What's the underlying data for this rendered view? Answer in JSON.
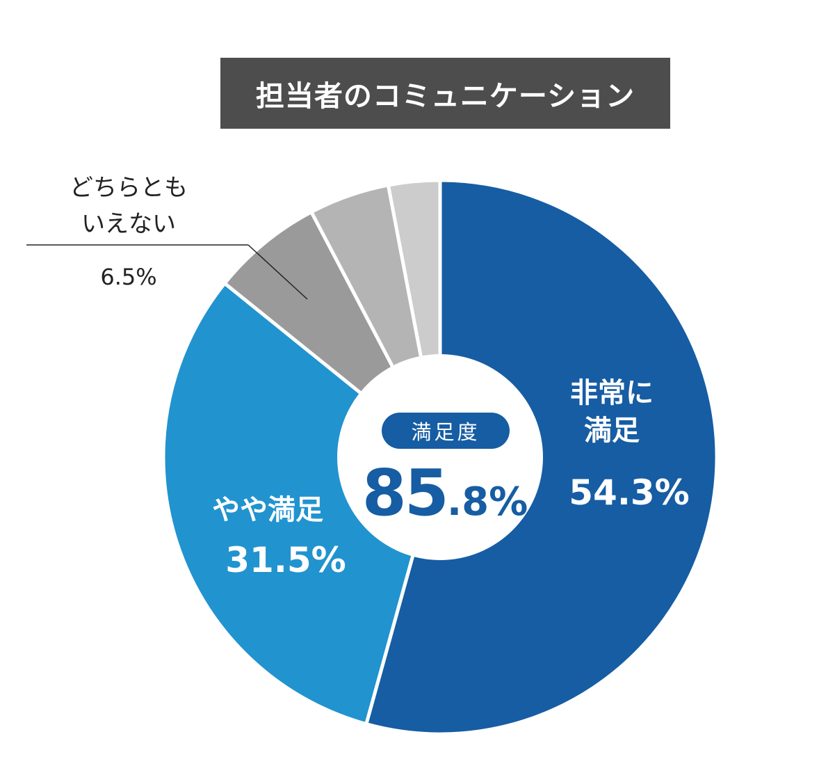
{
  "title": "担当者のコミュニケーション",
  "colors": {
    "very_satisfied": "#165da3",
    "somewhat_satisfied": "#2193cf",
    "neutral": "#9a9a9a",
    "gray2": "#b4b4b4",
    "gray3": "#cccccc",
    "title_bg": "#4d4d4d"
  },
  "chart_data": {
    "type": "pie",
    "variant": "donut",
    "slices": [
      {
        "label": "非常に満足",
        "value": 54.3,
        "value_label": "54.3%",
        "color": "#165da3"
      },
      {
        "label": "やや満足",
        "value": 31.5,
        "value_label": "31.5%",
        "color": "#2193cf"
      },
      {
        "label": "どちらともいえない",
        "value": 6.5,
        "value_label": "6.5%",
        "color": "#9a9a9a"
      },
      {
        "label": "",
        "value": 4.7,
        "color": "#b4b4b4"
      },
      {
        "label": "",
        "value": 3.0,
        "color": "#cccccc"
      }
    ],
    "center": {
      "label": "満足度",
      "value_int": "85",
      "value_dec": ".8%"
    }
  },
  "labels": {
    "very_satisfied_line1": "非常に",
    "very_satisfied_line2": "満足",
    "very_satisfied_value": "54.3%",
    "somewhat_satisfied": "やや満足",
    "somewhat_satisfied_value": "31.5%",
    "neutral_line1": "どちらとも",
    "neutral_line2": "いえない",
    "neutral_value": "6.5%"
  }
}
